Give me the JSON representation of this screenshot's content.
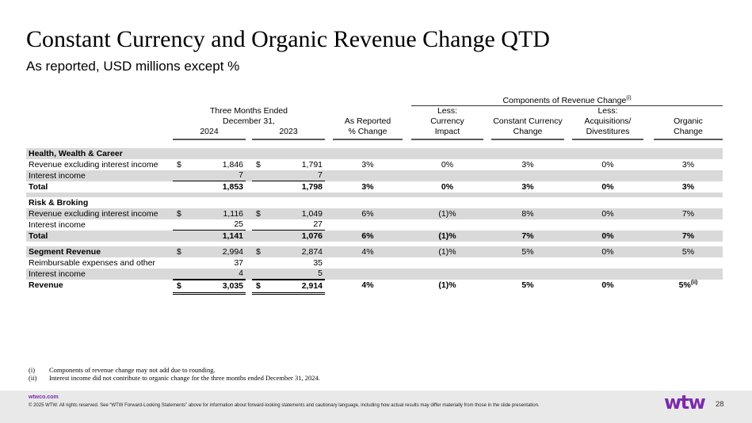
{
  "slide": {
    "title": "Constant Currency and Organic Revenue Change QTD",
    "subtitle": "As reported, USD millions except %"
  },
  "colors": {
    "brand_purple": "#7C2BAD",
    "row_band_gray": "#D9D9D9",
    "footer_bg": "#E9E9E9"
  },
  "table": {
    "header": {
      "components_label": "Components of Revenue Change",
      "components_sup": "(i)",
      "period_line1": "Three Months Ended",
      "period_line2": "December 31,",
      "col_2024": "2024",
      "col_2023": "2023",
      "as_reported_l1": "As Reported",
      "as_reported_l2": "% Change",
      "less1": "Less:",
      "currency_l1": "Currency",
      "currency_l2": "Impact",
      "cc_l1": "Constant Currency",
      "cc_l2": "Change",
      "less2": "Less:",
      "acq_l1": "Acquisitions/",
      "acq_l2": "Divestitures",
      "organic_l1": "Organic",
      "organic_l2": "Change"
    },
    "rows": [
      {
        "label": "Health, Wealth & Career"
      },
      {
        "label": "Revenue excluding interest income",
        "d24": "$",
        "v24": "1,846",
        "d23": "$",
        "v23": "1,791",
        "rep": "3%",
        "cur": "0%",
        "cc": "3%",
        "acq": "0%",
        "org": "3%"
      },
      {
        "label": "Interest income",
        "v24": "7",
        "v23": "7"
      },
      {
        "label": "Total",
        "v24": "1,853",
        "v23": "1,798",
        "rep": "3%",
        "cur": "0%",
        "cc": "3%",
        "acq": "0%",
        "org": "3%"
      },
      {
        "label": ""
      },
      {
        "label": "Risk & Broking"
      },
      {
        "label": "Revenue excluding interest income",
        "d24": "$",
        "v24": "1,116",
        "d23": "$",
        "v23": "1,049",
        "rep": "6%",
        "cur": "(1)%",
        "cc": "8%",
        "acq": "0%",
        "org": "7%"
      },
      {
        "label": "Interest income",
        "v24": "25",
        "v23": "27"
      },
      {
        "label": "Total",
        "v24": "1,141",
        "v23": "1,076",
        "rep": "6%",
        "cur": "(1)%",
        "cc": "7%",
        "acq": "0%",
        "org": "7%"
      },
      {
        "label": ""
      },
      {
        "label": "Segment Revenue",
        "d24": "$",
        "v24": "2,994",
        "d23": "$",
        "v23": "2,874",
        "rep": "4%",
        "cur": "(1)%",
        "cc": "5%",
        "acq": "0%",
        "org": "5%"
      },
      {
        "label": "Reimbursable expenses and other",
        "v24": "37",
        "v23": "35"
      },
      {
        "label": "Interest income",
        "v24": "4",
        "v23": "5"
      },
      {
        "label": "Revenue",
        "d24": "$",
        "v24": "3,035",
        "d23": "$",
        "v23": "2,914",
        "rep": "4%",
        "cur": "(1)%",
        "cc": "5%",
        "acq": "0%",
        "org": "5%",
        "org_sup": "(ii)"
      }
    ]
  },
  "footnotes": [
    {
      "marker": "(i)",
      "text": "Components of revenue change may not add due to rounding."
    },
    {
      "marker": "(ii)",
      "text": "Interest income did not contribute to organic change for the three months ended December 31, 2024."
    }
  ],
  "footer": {
    "url": "wtwco.com",
    "copyright": "© 2025 WTW. All rights reserved. See “WTW Forward-Looking Statements” above for information about forward-looking statements and cautionary language, including how actual results may differ materially from those in the slide presentation.",
    "logo": "wtw",
    "page_number": "28"
  }
}
